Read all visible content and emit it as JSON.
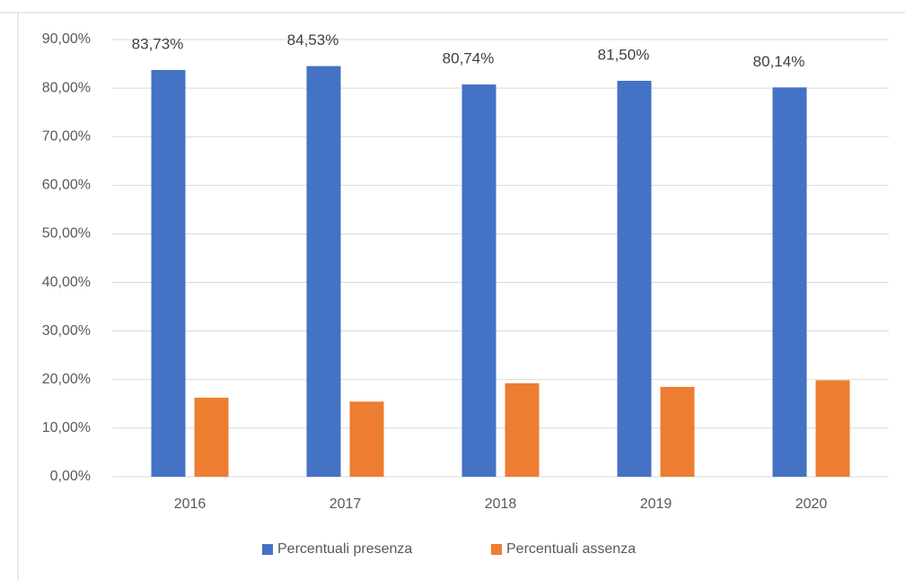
{
  "chart_data": {
    "type": "bar",
    "categories": [
      "2016",
      "2017",
      "2018",
      "2019",
      "2020"
    ],
    "series": [
      {
        "name": "Percentuali presenza",
        "color": "#4472c4",
        "values": [
          83.73,
          84.53,
          80.74,
          81.5,
          80.14
        ],
        "value_labels": [
          "83,73%",
          "84,53%",
          "80,74%",
          "81,50%",
          "80,14%"
        ]
      },
      {
        "name": "Percentuali assenza",
        "color": "#ed7d31",
        "values": [
          16.27,
          15.47,
          19.26,
          18.5,
          19.86
        ]
      }
    ],
    "ylim": [
      0,
      90
    ],
    "yticks": [
      {
        "value": 0,
        "label": "0,00%"
      },
      {
        "value": 10,
        "label": "10,00%"
      },
      {
        "value": 20,
        "label": "20,00%"
      },
      {
        "value": 30,
        "label": "30,00%"
      },
      {
        "value": 40,
        "label": "40,00%"
      },
      {
        "value": 50,
        "label": "50,00%"
      },
      {
        "value": 60,
        "label": "60,00%"
      },
      {
        "value": 70,
        "label": "70,00%"
      },
      {
        "value": 80,
        "label": "80,00%"
      },
      {
        "value": 90,
        "label": "90,00%"
      }
    ],
    "grid": true,
    "legend": "bottom"
  }
}
